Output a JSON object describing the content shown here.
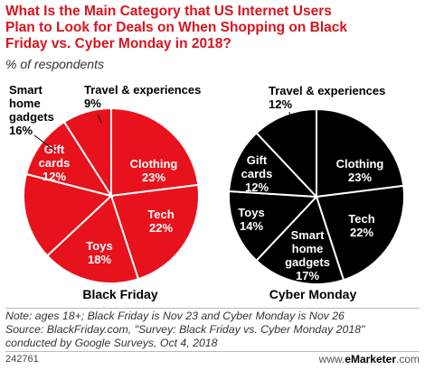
{
  "title_lines": [
    "What Is the Main Category that US Internet Users",
    "Plan to Look for Deals on When Shopping on Black",
    "Friday vs. Cyber Monday in 2018?"
  ],
  "subtitle": "% of respondents",
  "chart_data": [
    {
      "type": "pie",
      "name": "Black Friday",
      "slice_color": "#e8121c",
      "label_color": "#ffffff",
      "slices": [
        {
          "label": "Clothing",
          "value": 23
        },
        {
          "label": "Tech",
          "value": 22
        },
        {
          "label": "Toys",
          "value": 18
        },
        {
          "label": "Smart home gadgets",
          "value": 16
        },
        {
          "label": "Gift cards",
          "value": 12
        },
        {
          "label": "Travel & experiences",
          "value": 9
        }
      ]
    },
    {
      "type": "pie",
      "name": "Cyber Monday",
      "slice_color": "#000000",
      "label_color": "#ffffff",
      "slices": [
        {
          "label": "Clothing",
          "value": 23
        },
        {
          "label": "Tech",
          "value": 22
        },
        {
          "label": "Smart home gadgets",
          "value": 17
        },
        {
          "label": "Toys",
          "value": 14
        },
        {
          "label": "Gift cards",
          "value": 12
        },
        {
          "label": "Travel & experiences",
          "value": 12
        }
      ]
    }
  ],
  "notes": [
    "Note: ages 18+; Black Friday is Nov 23 and Cyber Monday is Nov 26",
    "Source: BlackFriday.com, \"Survey: Black Friday vs. Cyber Monday 2018\"",
    "conducted by Google Surveys, Oct 4, 2018"
  ],
  "chart_id": "242761",
  "brand": {
    "prefix": "www.",
    "name": "eMarketer",
    "suffix": ".com"
  }
}
